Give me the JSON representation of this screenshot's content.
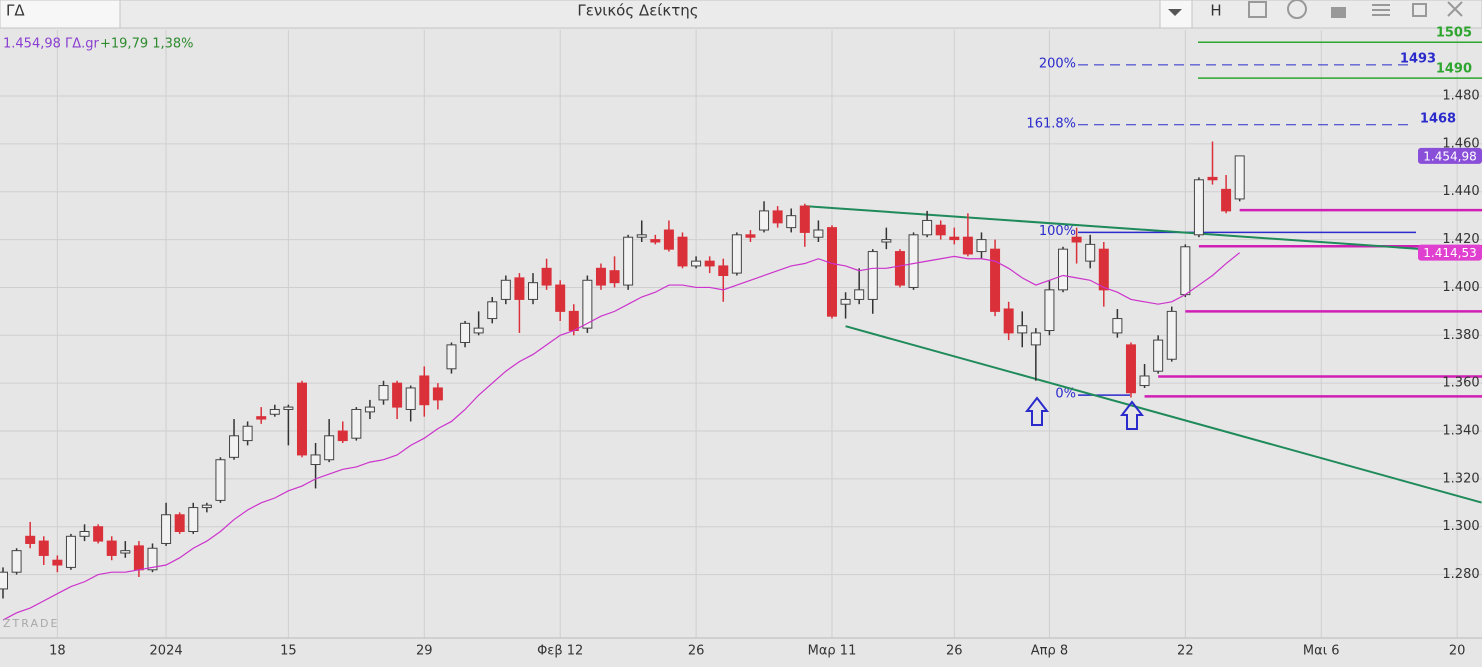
{
  "toolbar": {
    "symbol": "ΓΔ",
    "title": "Γενικός Δείκτης",
    "button": "H"
  },
  "chart_data": {
    "type": "candlestick",
    "quote": {
      "price": "1.454,98 ΓΔ.gr",
      "change": "+19,79 1,38%"
    },
    "watermark": "ZTRADE",
    "categories": [
      null,
      null,
      null,
      null,
      "18",
      null,
      null,
      null,
      null,
      null,
      null,
      null,
      "2024",
      null,
      null,
      null,
      null,
      null,
      null,
      null,
      null,
      "15",
      null,
      null,
      null,
      null,
      null,
      null,
      null,
      null,
      null,
      "29",
      null,
      null,
      null,
      null,
      null,
      null,
      null,
      null,
      null,
      "Φεβ 12",
      null,
      null,
      null,
      null,
      null,
      null,
      null,
      null,
      null,
      "26",
      null,
      null,
      null,
      null,
      null,
      null,
      null,
      null,
      null,
      "Μαρ 11",
      null,
      null,
      null,
      null,
      null,
      null,
      null,
      null,
      "26",
      null,
      null,
      null,
      null,
      null,
      null,
      "Απρ 8",
      null,
      null,
      null,
      null,
      null,
      null,
      null,
      null,
      null,
      "22",
      null,
      null,
      null,
      null,
      null,
      null,
      null,
      null,
      null,
      "Μαι 6",
      null,
      null,
      null,
      null,
      null,
      null,
      null,
      null,
      null,
      "20",
      null
    ],
    "open": [
      1274,
      1281,
      1296,
      1294,
      1286,
      1283,
      1296,
      1300,
      1294,
      1289,
      1292,
      1282,
      1293,
      1305,
      1298,
      1308,
      1311,
      1329,
      1336,
      1346,
      1347,
      1349,
      1360,
      1326,
      1328,
      1340,
      1337,
      1348,
      1353,
      1360,
      1349,
      1363,
      1358,
      1366,
      1377,
      1381,
      1387,
      1395,
      1404,
      1395,
      1408,
      1401,
      1390,
      1383,
      1408,
      1407,
      1401,
      1421,
      1420,
      1424,
      1421,
      1409,
      1411,
      1409,
      1406,
      1422,
      1424,
      1432,
      1425,
      1434,
      1421,
      1425,
      1393,
      1395,
      1395,
      1419,
      1415,
      1400,
      1422,
      1426,
      1421,
      1421,
      1415,
      1416,
      1391,
      1381,
      1376,
      1382,
      1399,
      1421,
      1411,
      1416,
      1381,
      1376,
      1359,
      1365,
      1370,
      1397,
      1422,
      1446,
      1441,
      1437,
      null,
      null,
      null,
      null,
      null,
      null,
      null,
      null,
      null,
      null,
      null,
      null,
      null,
      null,
      null,
      null,
      null
    ],
    "high": [
      1283,
      1291,
      1302,
      1296,
      1288,
      1297,
      1301,
      1301,
      1296,
      1294,
      1294,
      1293,
      1310,
      1306,
      1310,
      1310,
      1329,
      1345,
      1344,
      1350,
      1351,
      1351,
      1361,
      1335,
      1345,
      1344,
      1350,
      1353,
      1361,
      1361,
      1359,
      1367,
      1360,
      1377,
      1386,
      1390,
      1396,
      1405,
      1406,
      1406,
      1412,
      1403,
      1393,
      1405,
      1410,
      1413,
      1422,
      1428,
      1422,
      1428,
      1423,
      1413,
      1413,
      1412,
      1423,
      1424,
      1436,
      1434,
      1433,
      1435,
      1428,
      1426,
      1398,
      1408,
      1416,
      1425,
      1416,
      1423,
      1432,
      1428,
      1425,
      1431,
      1423,
      1420,
      1394,
      1390,
      1383,
      1403,
      1417,
      1425,
      1422,
      1419,
      1391,
      1377,
      1368,
      1380,
      1392,
      1418,
      1446,
      1461,
      1447,
      1455,
      null,
      null,
      null,
      null,
      null,
      null,
      null,
      null,
      null,
      null,
      null,
      null,
      null,
      null,
      null,
      null,
      null
    ],
    "low": [
      1270,
      1280,
      1291,
      1284,
      1281,
      1282,
      1294,
      1293,
      1286,
      1287,
      1279,
      1281,
      1292,
      1297,
      1297,
      1306,
      1310,
      1328,
      1334,
      1343,
      1346,
      1334,
      1329,
      1316,
      1327,
      1335,
      1336,
      1345,
      1351,
      1345,
      1344,
      1346,
      1349,
      1364,
      1375,
      1380,
      1385,
      1393,
      1381,
      1393,
      1399,
      1386,
      1380,
      1381,
      1399,
      1400,
      1399,
      1419,
      1418,
      1415,
      1408,
      1408,
      1406,
      1394,
      1405,
      1419,
      1423,
      1425,
      1423,
      1417,
      1419,
      1387,
      1387,
      1393,
      1389,
      1416,
      1400,
      1399,
      1421,
      1420,
      1418,
      1413,
      1412,
      1388,
      1378,
      1375,
      1361,
      1380,
      1398,
      1410,
      1408,
      1392,
      1379,
      1354,
      1358,
      1364,
      1369,
      1396,
      1421,
      1443,
      1431,
      1436,
      null,
      null,
      null,
      null,
      null,
      null,
      null,
      null,
      null,
      null,
      null,
      null,
      null,
      null,
      null,
      null,
      null
    ],
    "close": [
      1281,
      1290,
      1293,
      1288,
      1284,
      1296,
      1298,
      1294,
      1288,
      1290,
      1282,
      1291,
      1305,
      1298,
      1308,
      1309,
      1328,
      1338,
      1342,
      1345,
      1349,
      1350,
      1330,
      1330,
      1338,
      1336,
      1349,
      1350,
      1359,
      1350,
      1358,
      1351,
      1353,
      1376,
      1385,
      1383,
      1394,
      1403,
      1395,
      1402,
      1401,
      1390,
      1382,
      1403,
      1401,
      1402,
      1421,
      1422,
      1419,
      1416,
      1409,
      1411,
      1409,
      1405,
      1422,
      1421,
      1432,
      1427,
      1430,
      1423,
      1424,
      1388,
      1395,
      1399,
      1415,
      1420,
      1401,
      1422,
      1428,
      1422,
      1420,
      1414,
      1420,
      1390,
      1381,
      1384,
      1381,
      1399,
      1416,
      1419,
      1418,
      1399,
      1387,
      1356,
      1363,
      1378,
      1390,
      1417,
      1445,
      1445,
      1432,
      1454.98,
      null,
      null,
      null,
      null,
      null,
      null,
      null,
      null,
      null,
      null,
      null,
      null,
      null,
      null,
      null,
      null,
      null
    ],
    "up_color": "#f2f2f2",
    "down_color": "#d9303a",
    "wick_color": "#333333",
    "ma": {
      "color": "#cc33cc",
      "end_label": "1.414,53",
      "values": [
        1261,
        1264,
        1266,
        1269,
        1272,
        1275,
        1277,
        1280,
        1281,
        1281,
        1282,
        1283,
        1284,
        1287,
        1291,
        1294,
        1298,
        1303,
        1307,
        1310,
        1312,
        1315,
        1317,
        1320,
        1322,
        1324,
        1325,
        1327,
        1328,
        1330,
        1334,
        1337,
        1341,
        1344,
        1349,
        1355,
        1360,
        1365,
        1369,
        1372,
        1376,
        1380,
        1382,
        1385,
        1388,
        1390,
        1393,
        1396,
        1398,
        1401,
        1401,
        1400,
        1400,
        1399,
        1401,
        1403,
        1405,
        1407,
        1409,
        1410,
        1412,
        1410,
        1409,
        1407,
        1408,
        1408,
        1409,
        1410,
        1411,
        1412,
        1413,
        1412,
        1412,
        1411,
        1408,
        1404,
        1401,
        1403,
        1405,
        1404,
        1403,
        1400,
        1398,
        1395,
        1394,
        1393,
        1394,
        1397,
        1401,
        1405,
        1410,
        1414.53,
        null,
        null,
        null,
        null,
        null,
        null,
        null,
        null,
        null,
        null,
        null,
        null,
        null,
        null,
        null,
        null,
        null
      ]
    },
    "last_price": {
      "value": 1454.98,
      "label": "1.454,98"
    },
    "trendlines": [
      {
        "from": [
          59,
          1434
        ],
        "to": [
          108.8,
          1414.3
        ]
      },
      {
        "from": [
          62,
          1383.8
        ],
        "to": [
          108.8,
          1310.1
        ]
      }
    ],
    "trendline_color": "#1f8a5a",
    "levels": [
      {
        "value": 1432.3,
        "from": 91
      },
      {
        "value": 1417.2,
        "from": 88
      },
      {
        "value": 1390,
        "from": 87
      },
      {
        "value": 1362.8,
        "from": 85
      },
      {
        "value": 1354.5,
        "from": 84
      }
    ],
    "level_color": "#d01fb4",
    "targets": [
      {
        "value": 1505
      },
      {
        "value": 1490
      }
    ],
    "target_color": "#2ea52e",
    "fib": [
      {
        "level": "200%",
        "value": 1493,
        "dashed": true,
        "value_shown": true
      },
      {
        "level": "161.8%",
        "value": 1468,
        "dashed": true,
        "value_shown": true
      },
      {
        "level": "100%",
        "value": 1423,
        "dashed": false,
        "value_shown": false
      },
      {
        "level": "0%",
        "value": 1355,
        "dashed": false,
        "value_shown": false
      }
    ],
    "fib_color": "#2b2bcc",
    "ylim": [
      1256,
      1507.6
    ],
    "yticks": [
      {
        "value": 1280,
        "label": "1.280"
      },
      {
        "value": 1300,
        "label": "1.300"
      },
      {
        "value": 1320,
        "label": "1.320"
      },
      {
        "value": 1340,
        "label": "1.340"
      },
      {
        "value": 1360,
        "label": "1.360"
      },
      {
        "value": 1380,
        "label": "1.380"
      },
      {
        "value": 1400,
        "label": "1.400"
      },
      {
        "value": 1420,
        "label": "1.420"
      },
      {
        "value": 1440,
        "label": "1.440"
      },
      {
        "value": 1460,
        "label": "1.460"
      },
      {
        "value": 1480,
        "label": "1.480"
      }
    ],
    "grid": true
  }
}
